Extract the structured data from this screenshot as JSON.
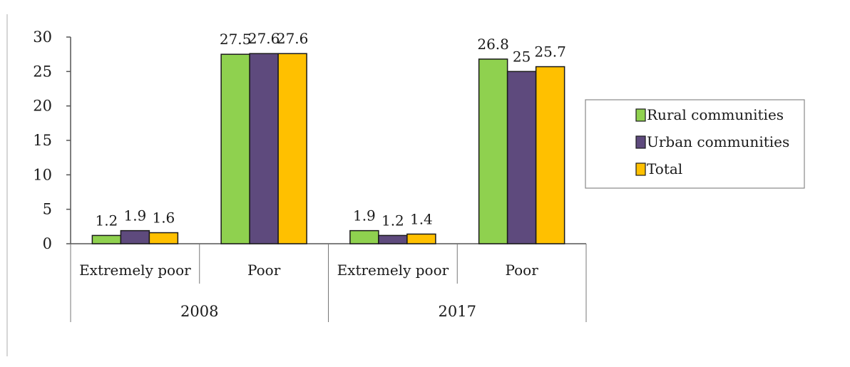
{
  "chart_data": {
    "type": "bar",
    "title": "",
    "xlabel": "",
    "ylabel": "",
    "ylim": [
      0,
      30
    ],
    "yticks": [
      0,
      5,
      10,
      15,
      20,
      25,
      30
    ],
    "grid": false,
    "legend_position": "right",
    "groups": [
      {
        "label": "2008",
        "categories": [
          "Extremely poor",
          "Poor"
        ]
      },
      {
        "label": "2017",
        "categories": [
          "Extremely poor",
          "Poor"
        ]
      }
    ],
    "categories": [
      "Extremely poor",
      "Poor",
      "Extremely poor",
      "Poor"
    ],
    "series": [
      {
        "name": "Rural communities",
        "color": "#8fd14f",
        "values": [
          1.2,
          27.5,
          1.9,
          26.8
        ],
        "labels": [
          "1.2",
          "27.5",
          "1.9",
          "26.8"
        ]
      },
      {
        "name": "Urban communities",
        "color": "#5e4a7d",
        "values": [
          1.9,
          27.6,
          1.2,
          25.0
        ],
        "labels": [
          "1.9",
          "27.6",
          "1.2",
          "25"
        ]
      },
      {
        "name": "Total",
        "color": "#ffc000",
        "values": [
          1.6,
          27.6,
          1.4,
          25.7
        ],
        "labels": [
          "1.6",
          "27.6",
          "1.4",
          "25.7"
        ]
      }
    ]
  }
}
